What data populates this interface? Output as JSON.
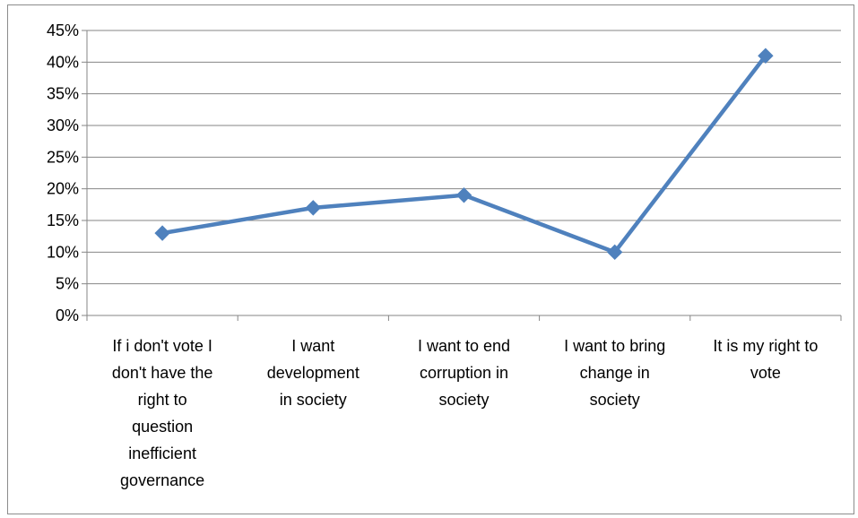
{
  "chart_data": {
    "type": "line",
    "title": "",
    "xlabel": "",
    "ylabel": "",
    "ylim": [
      0,
      45
    ],
    "y_unit": "%",
    "y_ticks": [
      "0%",
      "5%",
      "10%",
      "15%",
      "20%",
      "25%",
      "30%",
      "35%",
      "40%",
      "45%"
    ],
    "grid": true,
    "legend": "none",
    "categories": [
      "If i don't vote I don't have the right to question inefficient governance",
      "I want development in society",
      "I want to end corruption in society",
      "I want to bring change in society",
      "It is my right to vote"
    ],
    "category_lines": [
      [
        "If i don't vote I",
        "don't have the",
        "right to",
        "question",
        "inefficient",
        "governance"
      ],
      [
        "I want",
        "development",
        "in society"
      ],
      [
        "I want to end",
        "corruption in",
        "society"
      ],
      [
        "I want to bring",
        "change in",
        "society"
      ],
      [
        "It is my right to",
        "vote"
      ]
    ],
    "series": [
      {
        "values": [
          13,
          17,
          19,
          10,
          41
        ],
        "color": "#4f81bd",
        "marker": "diamond"
      }
    ]
  }
}
